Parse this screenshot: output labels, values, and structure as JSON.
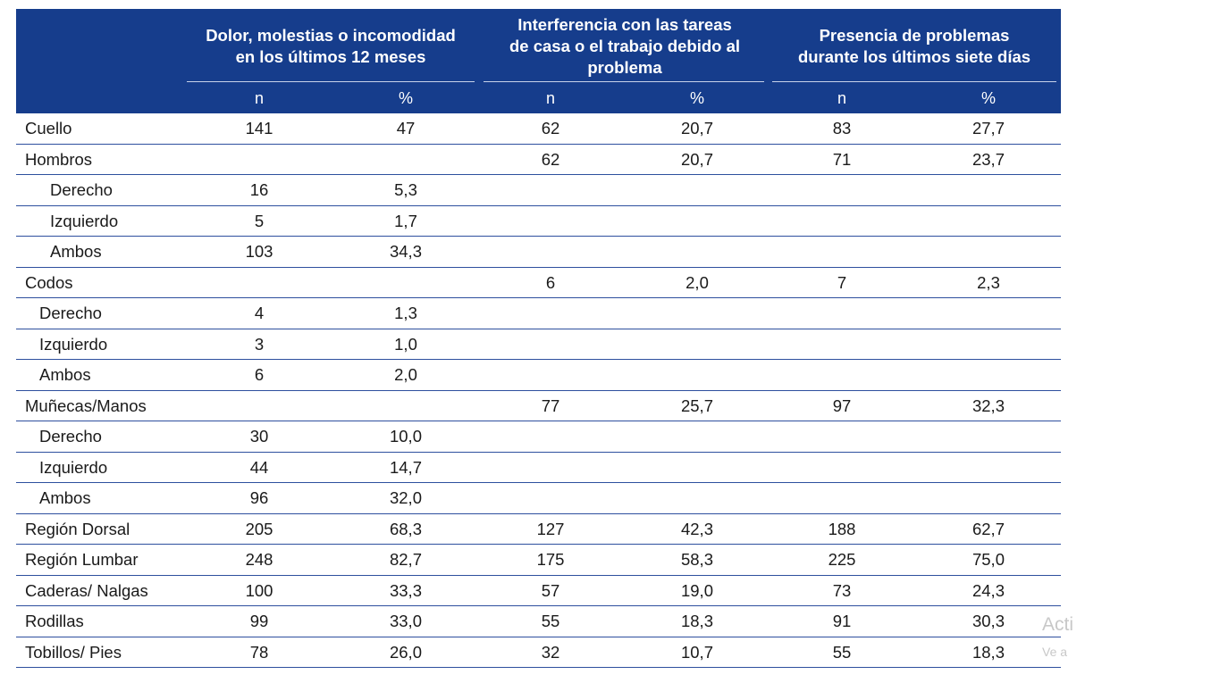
{
  "header": {
    "groups": [
      {
        "title": "Dolor, molestias o incomodidad\nen los últimos 12 meses"
      },
      {
        "title": "Interferencia con las tareas\nde casa o el trabajo debido al\nproblema"
      },
      {
        "title": "Presencia de problemas\ndurante los últimos siete días"
      }
    ],
    "sub": [
      "n",
      "%",
      "n",
      "%",
      "n",
      "%"
    ]
  },
  "rows": [
    {
      "label": "Cuello",
      "indent": 0,
      "values": [
        "141",
        "47",
        "62",
        "20,7",
        "83",
        "27,7"
      ]
    },
    {
      "label": "Hombros",
      "indent": 0,
      "values": [
        "",
        "",
        "62",
        "20,7",
        "71",
        "23,7"
      ]
    },
    {
      "label": "Derecho",
      "indent": 1,
      "values": [
        "16",
        "5,3",
        "",
        "",
        "",
        ""
      ]
    },
    {
      "label": "Izquierdo",
      "indent": 1,
      "values": [
        "5",
        "1,7",
        "",
        "",
        "",
        ""
      ]
    },
    {
      "label": "Ambos",
      "indent": 1,
      "values": [
        "103",
        "34,3",
        "",
        "",
        "",
        ""
      ]
    },
    {
      "label": "Codos",
      "indent": 0,
      "values": [
        "",
        "",
        "6",
        "2,0",
        "7",
        "2,3"
      ]
    },
    {
      "label": "Derecho",
      "indent": 2,
      "values": [
        "4",
        "1,3",
        "",
        "",
        "",
        ""
      ]
    },
    {
      "label": "Izquierdo",
      "indent": 2,
      "values": [
        "3",
        "1,0",
        "",
        "",
        "",
        ""
      ]
    },
    {
      "label": "Ambos",
      "indent": 2,
      "values": [
        "6",
        "2,0",
        "",
        "",
        "",
        ""
      ]
    },
    {
      "label": "Muñecas/Manos",
      "indent": 0,
      "values": [
        "",
        "",
        "77",
        "25,7",
        "97",
        "32,3"
      ]
    },
    {
      "label": "Derecho",
      "indent": 2,
      "values": [
        "30",
        "10,0",
        "",
        "",
        "",
        ""
      ]
    },
    {
      "label": "Izquierdo",
      "indent": 2,
      "values": [
        "44",
        "14,7",
        "",
        "",
        "",
        ""
      ]
    },
    {
      "label": "Ambos",
      "indent": 2,
      "values": [
        "96",
        "32,0",
        "",
        "",
        "",
        ""
      ]
    },
    {
      "label": "Región Dorsal",
      "indent": 0,
      "values": [
        "205",
        "68,3",
        "127",
        "42,3",
        "188",
        "62,7"
      ]
    },
    {
      "label": "Región Lumbar",
      "indent": 0,
      "values": [
        "248",
        "82,7",
        "175",
        "58,3",
        "225",
        "75,0"
      ]
    },
    {
      "label": "Caderas/ Nalgas",
      "indent": 0,
      "values": [
        "100",
        "33,3",
        "57",
        "19,0",
        "73",
        "24,3"
      ]
    },
    {
      "label": "Rodillas",
      "indent": 0,
      "values": [
        "99",
        "33,0",
        "55",
        "18,3",
        "91",
        "30,3"
      ]
    },
    {
      "label": "Tobillos/ Pies",
      "indent": 0,
      "values": [
        "78",
        "26,0",
        "32",
        "10,7",
        "55",
        "18,3"
      ]
    }
  ],
  "watermark": {
    "line1": "Acti",
    "line2": "Ve a"
  }
}
